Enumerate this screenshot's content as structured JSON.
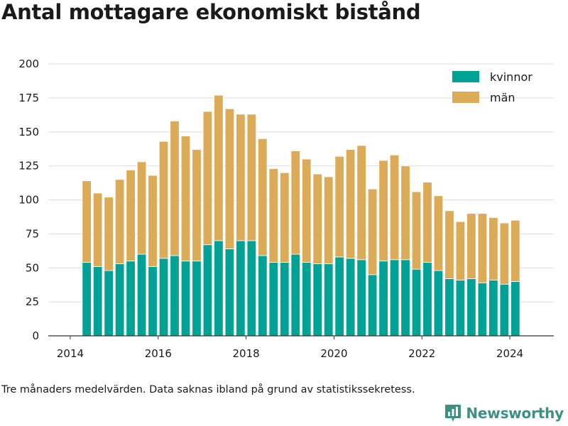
{
  "title": "Antal mottagare ekonomiskt bistånd",
  "note": "Tre månaders medelvärden. Data saknas ibland på grund av statistikssekretess.",
  "brand": {
    "name": "Newsworthy",
    "icon": "bar-chart-icon"
  },
  "colors": {
    "kvinnor": "#00a296",
    "man": "#dcab57",
    "brand": "#3f8f85"
  },
  "chart_data": {
    "type": "bar",
    "stacked": true,
    "x_type": "date",
    "x": [
      "2014-05",
      "2014-08",
      "2014-11",
      "2015-02",
      "2015-05",
      "2015-08",
      "2015-11",
      "2016-02",
      "2016-05",
      "2016-08",
      "2016-11",
      "2017-02",
      "2017-05",
      "2017-08",
      "2017-11",
      "2018-02",
      "2018-05",
      "2018-08",
      "2018-11",
      "2019-02",
      "2019-05",
      "2019-08",
      "2019-11",
      "2020-02",
      "2020-05",
      "2020-08",
      "2020-11",
      "2021-02",
      "2021-05",
      "2021-08",
      "2021-11",
      "2022-02",
      "2022-05",
      "2022-08",
      "2022-11",
      "2023-02",
      "2023-05",
      "2023-08",
      "2023-11",
      "2024-02"
    ],
    "series": [
      {
        "name": "kvinnor",
        "color": "#00a296",
        "values": [
          54,
          51,
          48,
          53,
          55,
          60,
          51,
          57,
          59,
          55,
          55,
          67,
          70,
          64,
          70,
          70,
          59,
          54,
          54,
          60,
          54,
          53,
          53,
          58,
          57,
          56,
          45,
          55,
          56,
          56,
          49,
          54,
          48,
          42,
          41,
          42,
          39,
          41,
          38,
          40
        ]
      },
      {
        "name": "män",
        "color": "#dcab57",
        "values": [
          60,
          54,
          54,
          62,
          67,
          68,
          67,
          86,
          99,
          92,
          82,
          98,
          107,
          103,
          93,
          93,
          86,
          69,
          66,
          76,
          76,
          66,
          64,
          74,
          80,
          84,
          63,
          74,
          77,
          69,
          57,
          59,
          55,
          50,
          43,
          48,
          51,
          46,
          45,
          45
        ]
      }
    ],
    "xticks": [
      "2014",
      "2016",
      "2018",
      "2020",
      "2022",
      "2024"
    ],
    "yticks": [
      "0",
      "25",
      "50",
      "75",
      "100",
      "125",
      "150",
      "175",
      "200"
    ],
    "ylim": [
      0,
      200
    ],
    "xlim": [
      "2013-07",
      "2025-01"
    ],
    "grid": "horizontal",
    "legend": "top-right"
  }
}
